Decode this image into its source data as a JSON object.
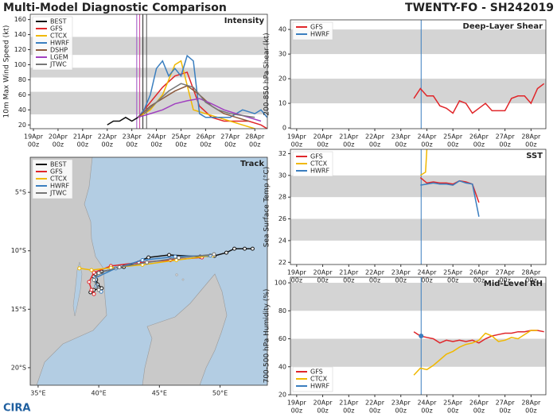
{
  "header": {
    "title": "Multi-Model Diagnostic Comparison",
    "storm": "TWENTY-FO - SH242019"
  },
  "footer": {
    "logo": "CIRA"
  },
  "chart_data": [
    {
      "type": "line",
      "title": "Intensity",
      "ylabel": "10m Max Wind Speed (kt)",
      "xlim": [
        -0.13,
        9.51
      ],
      "ylim": [
        15,
        167
      ],
      "xticks": [
        {
          "value": 0,
          "label": "19Apr"
        },
        {
          "value": 1,
          "label": "20Apr"
        },
        {
          "value": 2,
          "label": "21Apr"
        },
        {
          "value": 3,
          "label": "22Apr"
        },
        {
          "value": 4,
          "label": "23Apr"
        },
        {
          "value": 5,
          "label": "24Apr"
        },
        {
          "value": 6,
          "label": "25Apr"
        },
        {
          "value": 7,
          "label": "26Apr"
        },
        {
          "value": 8,
          "label": "27Apr"
        },
        {
          "value": 9,
          "label": "28Apr"
        }
      ],
      "xtick_time": "00z",
      "yticks": [
        20,
        40,
        60,
        80,
        100,
        120,
        140,
        160
      ],
      "bands": [
        [
          34,
          64
        ],
        [
          83,
          96
        ],
        [
          113,
          137
        ]
      ],
      "vlines": [
        {
          "x": 4.2,
          "color": "#9b4fc4"
        },
        {
          "x": 4.32,
          "color": "#d040a0"
        },
        {
          "x": 4.45,
          "color": "#222222"
        },
        {
          "x": 4.6,
          "color": "#555555"
        }
      ],
      "legend": "upper left",
      "series": [
        {
          "name": "BEST",
          "color": "#111111",
          "x": [
            3.0,
            3.25,
            3.5,
            3.75,
            4.0,
            4.25,
            4.5
          ],
          "values": [
            20,
            25,
            25,
            30,
            25,
            30,
            35
          ]
        },
        {
          "name": "GFS",
          "color": "#e0262a",
          "x": [
            4.25,
            4.75,
            5.25,
            5.75,
            6.25,
            6.75,
            7.25,
            7.75,
            8.25,
            8.75,
            9.25,
            9.5
          ],
          "values": [
            30,
            50,
            70,
            85,
            90,
            45,
            30,
            25,
            25,
            25,
            20,
            15
          ]
        },
        {
          "name": "CTCX",
          "color": "#f0b800",
          "x": [
            4.25,
            4.75,
            5.25,
            5.75,
            6.0,
            6.5,
            7.0,
            7.5,
            8.0,
            8.5,
            9.0
          ],
          "values": [
            30,
            40,
            60,
            100,
            105,
            40,
            35,
            30,
            25,
            20,
            15
          ]
        },
        {
          "name": "HWRF",
          "color": "#3a7ebf",
          "x": [
            4.25,
            4.5,
            4.75,
            5.0,
            5.25,
            5.5,
            5.75,
            6.0,
            6.25,
            6.5,
            6.75,
            7.0,
            7.5,
            8.0,
            8.5,
            9.0,
            9.25,
            9.5
          ],
          "values": [
            30,
            40,
            60,
            95,
            105,
            85,
            95,
            85,
            112,
            105,
            35,
            30,
            30,
            30,
            40,
            35,
            40,
            30
          ]
        },
        {
          "name": "DSHP",
          "color": "#8c5a3c",
          "x": [
            4.25,
            4.75,
            5.25,
            5.75,
            6.25,
            6.75,
            7.25,
            7.75,
            8.25,
            8.75
          ],
          "values": [
            30,
            45,
            55,
            65,
            72,
            60,
            45,
            35,
            30,
            25
          ]
        },
        {
          "name": "LGEM",
          "color": "#a040c0",
          "x": [
            4.25,
            4.75,
            5.25,
            5.75,
            6.25,
            6.75,
            7.25,
            7.75,
            8.25,
            8.75,
            9.25
          ],
          "values": [
            30,
            35,
            40,
            48,
            52,
            55,
            48,
            40,
            35,
            30,
            25
          ]
        },
        {
          "name": "JTWC",
          "color": "#777777",
          "x": [
            4.5,
            5.0,
            5.5,
            6.0,
            6.5,
            7.0,
            7.5,
            8.0,
            9.0
          ],
          "values": [
            35,
            50,
            65,
            75,
            70,
            50,
            40,
            35,
            30
          ]
        }
      ]
    },
    {
      "type": "map",
      "title": "Track",
      "xlim": [
        34.35,
        53.9
      ],
      "ylim": [
        -21.5,
        -2.0
      ],
      "xticks": [
        {
          "value": 35,
          "label": "35°E"
        },
        {
          "value": 40,
          "label": "40°E"
        },
        {
          "value": 45,
          "label": "45°E"
        },
        {
          "value": 50,
          "label": "50°E"
        }
      ],
      "yticks": [
        {
          "value": -5,
          "label": "5°S"
        },
        {
          "value": -10,
          "label": "10°S"
        },
        {
          "value": -15,
          "label": "15°S"
        },
        {
          "value": -20,
          "label": "20°S"
        }
      ],
      "legend": "upper left",
      "series": [
        {
          "name": "BEST",
          "color": "#111111",
          "x": [
            52.68,
            52.03,
            51.18,
            50.52,
            49.54,
            48.36,
            45.8,
            44.1,
            42.07,
            40.24,
            39.72,
            39.58,
            39.78,
            39.91,
            40.24,
            39.58,
            39.32
          ],
          "values": [
            -9.82,
            -9.82,
            -9.82,
            -10.16,
            -10.43,
            -10.5,
            -10.36,
            -10.57,
            -11.38,
            -11.79,
            -12.0,
            -12.2,
            -12.47,
            -12.88,
            -13.2,
            -13.35,
            -13.55
          ]
        },
        {
          "name": "GFS",
          "color": "#e0262a",
          "x": [
            48.5,
            45.9,
            43.3,
            41.0,
            39.6,
            39.2,
            39.4,
            39.6
          ],
          "values": [
            -10.57,
            -10.8,
            -11.0,
            -11.3,
            -11.86,
            -12.67,
            -13.35,
            -13.7
          ]
        },
        {
          "name": "CTCX",
          "color": "#f0b800",
          "x": [
            49.4,
            46.4,
            43.6,
            41.0,
            39.4,
            38.4
          ],
          "values": [
            -10.4,
            -10.8,
            -11.2,
            -11.45,
            -11.65,
            -11.5
          ]
        },
        {
          "name": "HWRF",
          "color": "#3a7ebf",
          "x": [
            49.2,
            46.3,
            43.6,
            41.4,
            39.7,
            39.8,
            40.2
          ],
          "values": [
            -10.4,
            -10.5,
            -10.8,
            -11.5,
            -12.33,
            -13.0,
            -13.5
          ]
        },
        {
          "name": "JTWC",
          "color": "#777777",
          "x": [
            49.5,
            46.6,
            43.97,
            41.7,
            40.0,
            39.6,
            40.0
          ],
          "values": [
            -10.3,
            -10.6,
            -11.0,
            -11.4,
            -11.9,
            -12.5,
            -13.35
          ]
        }
      ]
    },
    {
      "type": "line",
      "title": "Deep-Layer Shear",
      "ylabel": "200-850 hPa Shear (kt)",
      "xlim": [
        -0.24,
        9.57
      ],
      "ylim": [
        -0.3,
        43.9
      ],
      "xticks": [
        {
          "value": 0,
          "label": "19Apr"
        },
        {
          "value": 1,
          "label": "20Apr"
        },
        {
          "value": 2,
          "label": "21Apr"
        },
        {
          "value": 3,
          "label": "22Apr"
        },
        {
          "value": 4,
          "label": "23Apr"
        },
        {
          "value": 5,
          "label": "24Apr"
        },
        {
          "value": 6,
          "label": "25Apr"
        },
        {
          "value": 7,
          "label": "26Apr"
        },
        {
          "value": 8,
          "label": "27Apr"
        },
        {
          "value": 9,
          "label": "28Apr"
        }
      ],
      "xtick_time": "00z",
      "yticks": [
        0,
        10,
        20,
        30,
        40
      ],
      "bands": [
        [
          10,
          20
        ],
        [
          30,
          40
        ]
      ],
      "vlines": [
        {
          "x": 4.78,
          "color": "#3a7ebf"
        }
      ],
      "legend": "upper left",
      "series": [
        {
          "name": "GFS",
          "color": "#e0262a",
          "x": [
            4.5,
            4.75,
            5.0,
            5.25,
            5.5,
            5.75,
            6.0,
            6.25,
            6.5,
            6.75,
            7.0,
            7.25,
            7.5,
            7.75,
            8.0,
            8.25,
            8.5,
            8.75,
            9.0,
            9.25,
            9.5
          ],
          "values": [
            12,
            16,
            13,
            13,
            9,
            8,
            6,
            11,
            10,
            6,
            8,
            10,
            7,
            7,
            7,
            12,
            13,
            13,
            10,
            16,
            18
          ]
        },
        {
          "name": "HWRF",
          "color": "#3a7ebf",
          "x": [],
          "values": []
        }
      ]
    },
    {
      "type": "line",
      "title": "SST",
      "ylabel": "Sea Surface Temp (°C)",
      "xlim": [
        -0.24,
        9.57
      ],
      "ylim": [
        21.8,
        32.4
      ],
      "xticks": [
        {
          "value": 0,
          "label": "19Apr"
        },
        {
          "value": 1,
          "label": "20Apr"
        },
        {
          "value": 2,
          "label": "21Apr"
        },
        {
          "value": 3,
          "label": "22Apr"
        },
        {
          "value": 4,
          "label": "23Apr"
        },
        {
          "value": 5,
          "label": "24Apr"
        },
        {
          "value": 6,
          "label": "25Apr"
        },
        {
          "value": 7,
          "label": "26Apr"
        },
        {
          "value": 8,
          "label": "27Apr"
        },
        {
          "value": 9,
          "label": "28Apr"
        }
      ],
      "xtick_time": "00z",
      "yticks": [
        22,
        24,
        26,
        28,
        30,
        32
      ],
      "bands": [
        [
          24,
          26
        ],
        [
          28,
          30
        ]
      ],
      "vlines": [
        {
          "x": 4.78,
          "color": "#3a7ebf"
        }
      ],
      "legend": "upper left",
      "series": [
        {
          "name": "GFS",
          "color": "#e0262a",
          "x": [
            4.75,
            5.0,
            5.25,
            5.5,
            5.75,
            6.0,
            6.25,
            6.5,
            6.75,
            7.0
          ],
          "values": [
            29.8,
            29.3,
            29.4,
            29.3,
            29.3,
            29.2,
            29.5,
            29.4,
            29.2,
            27.5
          ]
        },
        {
          "name": "CTCX",
          "color": "#f0b800",
          "x": [
            4.75,
            4.95,
            5.0
          ],
          "values": [
            30.0,
            30.3,
            32.5
          ]
        },
        {
          "name": "HWRF",
          "color": "#3a7ebf",
          "x": [
            4.75,
            5.0,
            5.25,
            5.5,
            5.75,
            6.0,
            6.25,
            6.5,
            6.75,
            7.0
          ],
          "values": [
            29.1,
            29.2,
            29.3,
            29.2,
            29.2,
            29.1,
            29.5,
            29.3,
            29.2,
            26.2
          ]
        }
      ]
    },
    {
      "type": "line",
      "title": "Mid-Level RH",
      "ylabel": "700-500 hPa Humidity (%)",
      "xlim": [
        -0.24,
        9.57
      ],
      "ylim": [
        20,
        104
      ],
      "xticks": [
        {
          "value": 0,
          "label": "19Apr"
        },
        {
          "value": 1,
          "label": "20Apr"
        },
        {
          "value": 2,
          "label": "21Apr"
        },
        {
          "value": 3,
          "label": "22Apr"
        },
        {
          "value": 4,
          "label": "23Apr"
        },
        {
          "value": 5,
          "label": "24Apr"
        },
        {
          "value": 6,
          "label": "25Apr"
        },
        {
          "value": 7,
          "label": "26Apr"
        },
        {
          "value": 8,
          "label": "27Apr"
        },
        {
          "value": 9,
          "label": "28Apr"
        }
      ],
      "xtick_time": "00z",
      "yticks": [
        20,
        40,
        60,
        80,
        100
      ],
      "bands": [
        [
          40,
          60
        ],
        [
          80,
          100
        ]
      ],
      "vlines": [
        {
          "x": 4.78,
          "color": "#3a7ebf"
        }
      ],
      "legend": "lower left",
      "series": [
        {
          "name": "GFS",
          "color": "#e0262a",
          "x": [
            4.5,
            4.75,
            5.0,
            5.25,
            5.5,
            5.75,
            6.0,
            6.25,
            6.5,
            6.75,
            7.0,
            7.25,
            7.5,
            7.75,
            8.0,
            8.25,
            8.5,
            8.75,
            9.0,
            9.25,
            9.5
          ],
          "values": [
            65,
            62,
            61,
            60,
            57,
            59,
            58,
            59,
            58,
            59,
            57,
            60,
            62,
            63,
            64,
            64,
            65,
            65,
            66,
            66,
            65
          ]
        },
        {
          "name": "CTCX",
          "color": "#f0b800",
          "x": [
            4.5,
            4.75,
            5.0,
            5.25,
            5.5,
            5.75,
            6.0,
            6.25,
            6.5,
            6.75,
            7.0,
            7.25,
            7.5,
            7.75,
            8.0,
            8.25,
            8.5,
            8.75,
            9.0,
            9.25
          ],
          "values": [
            34,
            39,
            38,
            41,
            45,
            49,
            51,
            54,
            56,
            57,
            59,
            64,
            62,
            58,
            59,
            61,
            60,
            63,
            66,
            66
          ]
        },
        {
          "name": "HWRF",
          "color": "#3a7ebf",
          "x": [
            4.78
          ],
          "values": [
            62
          ]
        }
      ]
    }
  ]
}
